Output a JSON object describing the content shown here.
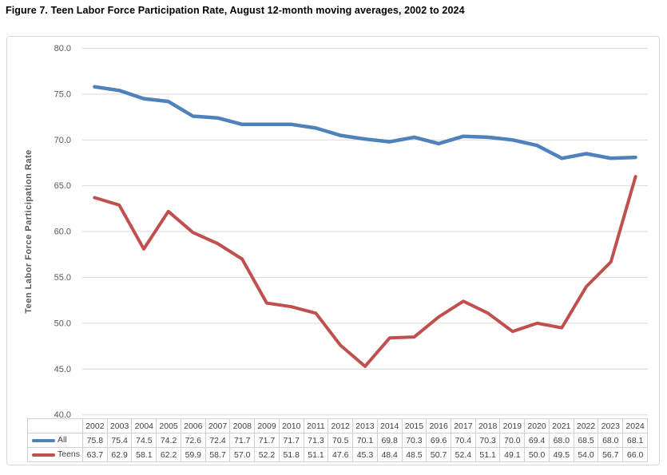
{
  "title": "Figure 7. Teen Labor Force Participation Rate, August 12-month moving averages, 2002 to 2024",
  "chart_data": {
    "type": "line",
    "categories": [
      2002,
      2003,
      2004,
      2005,
      2006,
      2007,
      2008,
      2009,
      2010,
      2011,
      2012,
      2013,
      2014,
      2015,
      2016,
      2017,
      2018,
      2019,
      2020,
      2021,
      2022,
      2023,
      2024
    ],
    "series": [
      {
        "name": "All",
        "color": "#4F81BD",
        "values": [
          75.8,
          75.4,
          74.5,
          74.2,
          72.6,
          72.4,
          71.7,
          71.7,
          71.7,
          71.3,
          70.5,
          70.1,
          69.8,
          70.3,
          69.6,
          70.4,
          70.3,
          70.0,
          69.4,
          68.0,
          68.5,
          68.0,
          68.1
        ]
      },
      {
        "name": "Teens",
        "color": "#C0504D",
        "values": [
          63.7,
          62.9,
          58.1,
          62.2,
          59.9,
          58.7,
          57.0,
          52.2,
          51.8,
          51.1,
          47.6,
          45.3,
          48.4,
          48.5,
          50.7,
          52.4,
          51.1,
          49.1,
          50.0,
          49.5,
          54.0,
          56.7,
          66.0
        ]
      }
    ],
    "xlabel": "",
    "ylabel": "Teen Labor Force Participation Rate",
    "ylim": [
      40.0,
      80.0
    ],
    "ytick_step": 5.0,
    "value_decimals": 1,
    "grid": true,
    "legend_position": "table-left",
    "colors": {
      "gridline": "#D9D9D9",
      "chart_border": "#D9D9D9",
      "table_border": "#D2D0D0",
      "axis_text": "#595959",
      "table_text": "#404040",
      "title_text": "#000000",
      "background": "#FFFFFF"
    }
  }
}
